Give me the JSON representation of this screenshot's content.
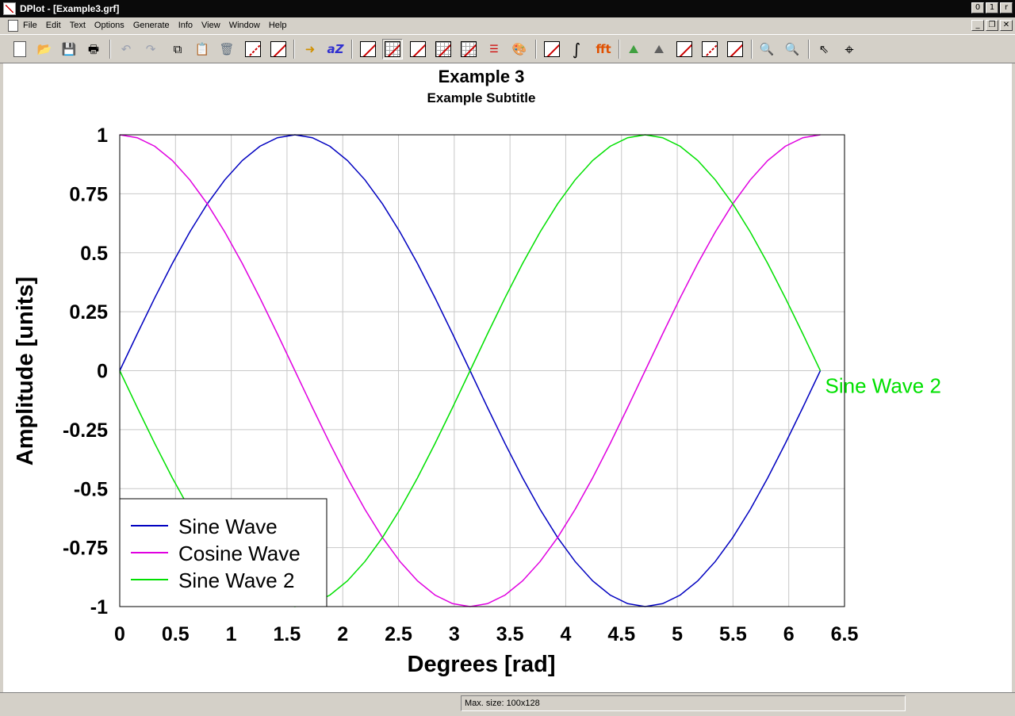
{
  "window": {
    "title": "DPlot - [Example3.grf]",
    "controls": {
      "minimize": "0",
      "maximize": "1",
      "close": "r"
    }
  },
  "menu": {
    "items": [
      "File",
      "Edit",
      "Text",
      "Options",
      "Generate",
      "Info",
      "View",
      "Window",
      "Help"
    ]
  },
  "toolbar": {
    "icons": [
      "new-file-icon",
      "open-folder-icon",
      "save-disk-icon",
      "print-icon",
      "undo-icon",
      "redo-icon",
      "copy-picture-icon",
      "paste-icon",
      "delete-bin-icon",
      "edit-data-icon",
      "edit-curve-icon",
      "translate-icon",
      "text-font-icon",
      "linear-axes-icon",
      "grid-axes-icon",
      "log-x-axes-icon",
      "log-y-axes-icon",
      "log-log-axes-icon",
      "line-styles-icon",
      "color-palette-icon",
      "bad-point-icon",
      "integral-icon",
      "fft-icon",
      "contour-icon",
      "3d-surface-icon",
      "multiple-plots-icon",
      "extrema-icon",
      "axis-scale-icon",
      "zoom-in-icon",
      "zoom-out-icon",
      "pointer-help-icon",
      "crosshair-icon"
    ]
  },
  "chart_data": {
    "type": "line",
    "title": "Example 3",
    "subtitle": "Example Subtitle",
    "xlabel": "Degrees [rad]",
    "ylabel": "Amplitude [units]",
    "xlim": [
      0,
      6.5
    ],
    "ylim": [
      -1,
      1
    ],
    "x_ticks": [
      0,
      0.5,
      1,
      1.5,
      2,
      2.5,
      3,
      3.5,
      4,
      4.5,
      5,
      5.5,
      6,
      6.5
    ],
    "x_tick_labels": [
      "0",
      "0.5",
      "1",
      "1.5",
      "2",
      "2.5",
      "3",
      "3.5",
      "4",
      "4.5",
      "5",
      "5.5",
      "6",
      "6.5"
    ],
    "y_ticks": [
      -1,
      -0.75,
      -0.5,
      -0.25,
      0,
      0.25,
      0.5,
      0.75,
      1
    ],
    "y_tick_labels": [
      "-1",
      "-0.75",
      "-0.5",
      "-0.25",
      "0",
      "0.25",
      "0.5",
      "0.75",
      "1"
    ],
    "grid": true,
    "legend_position": "bottom-left",
    "x": [
      0,
      0.1571,
      0.3142,
      0.4712,
      0.6283,
      0.7854,
      0.9425,
      1.0996,
      1.2566,
      1.4137,
      1.5708,
      1.7279,
      1.885,
      2.042,
      2.1991,
      2.3562,
      2.5133,
      2.6704,
      2.8274,
      2.9845,
      3.1416,
      3.2987,
      3.4558,
      3.6128,
      3.7699,
      3.927,
      4.0841,
      4.2412,
      4.3982,
      4.5553,
      4.7124,
      4.8695,
      5.0265,
      5.1836,
      5.3407,
      5.4978,
      5.6549,
      5.8119,
      5.969,
      6.1261,
      6.2832
    ],
    "series": [
      {
        "name": "Sine Wave",
        "color": "#0000c0",
        "values": [
          0,
          0.1564,
          0.309,
          0.454,
          0.5878,
          0.7071,
          0.809,
          0.891,
          0.9511,
          0.9877,
          1,
          0.9877,
          0.9511,
          0.891,
          0.809,
          0.7071,
          0.5878,
          0.454,
          0.309,
          0.1564,
          0,
          -0.1564,
          -0.309,
          -0.454,
          -0.5878,
          -0.7071,
          -0.809,
          -0.891,
          -0.9511,
          -0.9877,
          -1,
          -0.9877,
          -0.9511,
          -0.891,
          -0.809,
          -0.7071,
          -0.5878,
          -0.454,
          -0.309,
          -0.1564,
          0
        ]
      },
      {
        "name": "Cosine Wave",
        "color": "#e000e0",
        "values": [
          1,
          0.9877,
          0.9511,
          0.891,
          0.809,
          0.7071,
          0.5878,
          0.454,
          0.309,
          0.1564,
          0,
          -0.1564,
          -0.309,
          -0.454,
          -0.5878,
          -0.7071,
          -0.809,
          -0.891,
          -0.9511,
          -0.9877,
          -1,
          -0.9877,
          -0.9511,
          -0.891,
          -0.809,
          -0.7071,
          -0.5878,
          -0.454,
          -0.309,
          -0.1564,
          0,
          0.1564,
          0.309,
          0.454,
          0.5878,
          0.7071,
          0.809,
          0.891,
          0.9511,
          0.9877,
          1
        ]
      },
      {
        "name": "Sine Wave 2",
        "color": "#00e000",
        "values": [
          0,
          -0.1564,
          -0.309,
          -0.454,
          -0.5878,
          -0.7071,
          -0.809,
          -0.891,
          -0.9511,
          -0.9877,
          -1,
          -0.9877,
          -0.9511,
          -0.891,
          -0.809,
          -0.7071,
          -0.5878,
          -0.454,
          -0.309,
          -0.1564,
          0,
          0.1564,
          0.309,
          0.454,
          0.5878,
          0.7071,
          0.809,
          0.891,
          0.9511,
          0.9877,
          1,
          0.9877,
          0.9511,
          0.891,
          0.809,
          0.7071,
          0.5878,
          0.454,
          0.309,
          0.1564,
          0
        ]
      }
    ],
    "annotations": [
      {
        "text": "Sine Wave 2",
        "color": "#00e000",
        "anchor": "end-of-series-3"
      }
    ]
  },
  "status": {
    "text": "Max. size: 100x128"
  }
}
